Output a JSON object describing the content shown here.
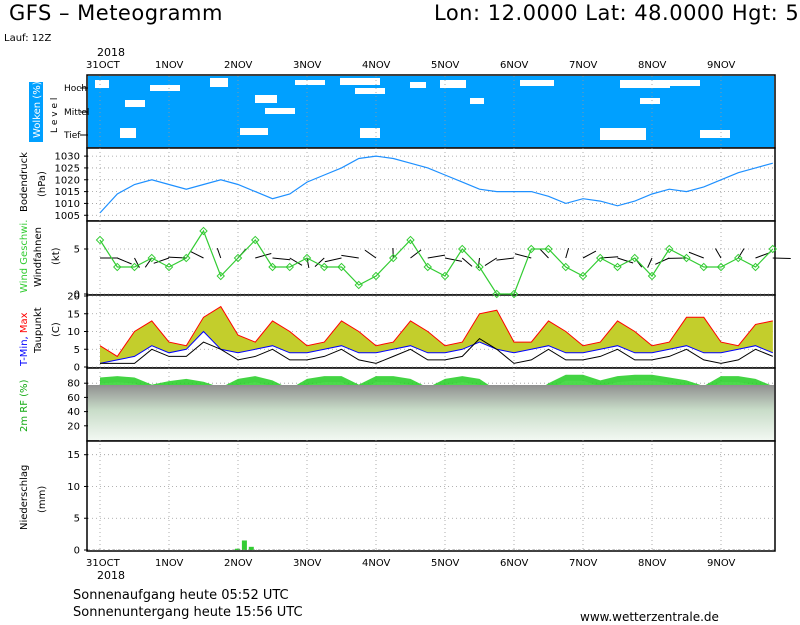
{
  "header": {
    "title": "GFS – Meteogramm",
    "location": "Lon: 12.0000 Lat: 48.0000 Hgt: 5",
    "run": "Lauf: 12Z"
  },
  "time_axis": {
    "year": "2018",
    "dates": [
      "31OCT",
      "1NOV",
      "2NOV",
      "3NOV",
      "4NOV",
      "5NOV",
      "6NOV",
      "7NOV",
      "8NOV",
      "9NOV"
    ]
  },
  "colors": {
    "cloud_blue": "#00a0ff",
    "pressure_line": "#1e90ff",
    "wind_speed": "#33cc33",
    "tmin_label": "#0000ff",
    "tmax_label": "#ff0000",
    "humidity_label": "#11aa11",
    "precip_bar": "#33cc33"
  },
  "panels": {
    "clouds": {
      "label": "Wolken (%)",
      "levels": [
        "Hoch",
        "Mittel",
        "Tief"
      ],
      "level_word": "L e v e l"
    },
    "pressure": {
      "label1": "Bodendruck",
      "label2": "(hPa)",
      "ticks": [
        "1030",
        "1025",
        "1020",
        "1015",
        "1010",
        "1005"
      ]
    },
    "wind": {
      "label1": "Wind Geschwi.",
      "label2": "Windfahnen",
      "label3": "(kt)",
      "ticks": [
        "5",
        "0"
      ]
    },
    "temp": {
      "label_tmin": "T-Min,",
      "label_tmax": "Max",
      "label2": "Taupunkt",
      "label3": "(C)",
      "ticks": [
        "20",
        "15",
        "10",
        "5",
        "0"
      ]
    },
    "humidity": {
      "label": "2m RF (%)",
      "ticks": [
        "80",
        "60",
        "40",
        "20"
      ]
    },
    "precip": {
      "label1": "Niederschlag",
      "label2": "(mm)",
      "ticks": [
        "15",
        "10",
        "5",
        "0"
      ]
    }
  },
  "footer": {
    "sunrise": "Sonnenaufgang heute 05:52 UTC",
    "sunset": "Sonnenuntergang heute 15:56 UTC",
    "url": "www.wetterzentrale.de"
  },
  "chart_data": [
    {
      "type": "line",
      "panel": "pressure",
      "x": [
        0,
        0.25,
        0.5,
        0.75,
        1,
        1.25,
        1.5,
        1.75,
        2,
        2.25,
        2.5,
        2.75,
        3,
        3.25,
        3.5,
        3.75,
        4,
        4.25,
        4.5,
        4.75,
        5,
        5.25,
        5.5,
        5.75,
        6,
        6.25,
        6.5,
        6.75,
        7,
        7.25,
        7.5,
        7.75,
        8,
        8.25,
        8.5,
        8.75,
        9,
        9.25,
        9.5,
        9.75
      ],
      "values": [
        1006,
        1014,
        1018,
        1020,
        1018,
        1016,
        1018,
        1020,
        1018,
        1015,
        1012,
        1014,
        1019,
        1022,
        1025,
        1029,
        1030,
        1029,
        1027,
        1025,
        1022,
        1019,
        1016,
        1015,
        1015,
        1015,
        1013,
        1010,
        1012,
        1011,
        1009,
        1011,
        1014,
        1016,
        1015,
        1017,
        1020,
        1023,
        1025,
        1027
      ],
      "ylim": [
        1003,
        1033
      ]
    },
    {
      "type": "line",
      "panel": "wind",
      "x": [
        0,
        0.25,
        0.5,
        0.75,
        1,
        1.25,
        1.5,
        1.75,
        2,
        2.25,
        2.5,
        2.75,
        3,
        3.25,
        3.5,
        3.75,
        4,
        4.25,
        4.5,
        4.75,
        5,
        5.25,
        5.5,
        5.75,
        6,
        6.25,
        6.5,
        6.75,
        7,
        7.25,
        7.5,
        7.75,
        8,
        8.25,
        8.5,
        8.75,
        9,
        9.25,
        9.5,
        9.75
      ],
      "values": [
        6,
        3,
        3,
        4,
        3,
        4,
        7,
        2,
        4,
        6,
        3,
        3,
        4,
        3,
        3,
        1,
        2,
        4,
        6,
        3,
        2,
        5,
        3,
        0,
        0,
        5,
        5,
        3,
        2,
        4,
        3,
        4,
        2,
        5,
        4,
        3,
        3,
        4,
        3,
        5
      ],
      "ylim": [
        0,
        8
      ]
    },
    {
      "type": "area",
      "panel": "temperature",
      "x": [
        0,
        0.25,
        0.5,
        0.75,
        1,
        1.25,
        1.5,
        1.75,
        2,
        2.25,
        2.5,
        2.75,
        3,
        3.25,
        3.5,
        3.75,
        4,
        4.25,
        4.5,
        4.75,
        5,
        5.25,
        5.5,
        5.75,
        6,
        6.25,
        6.5,
        6.75,
        7,
        7.25,
        7.5,
        7.75,
        8,
        8.25,
        8.5,
        8.75,
        9,
        9.25,
        9.5,
        9.75
      ],
      "series": [
        {
          "name": "T-Min",
          "values": [
            1,
            2,
            3,
            6,
            4,
            5,
            10,
            5,
            4,
            5,
            6,
            4,
            4,
            5,
            6,
            4,
            4,
            5,
            6,
            4,
            4,
            5,
            7,
            5,
            4,
            5,
            6,
            4,
            4,
            5,
            6,
            4,
            4,
            5,
            6,
            4,
            4,
            5,
            6,
            4
          ]
        },
        {
          "name": "Max",
          "values": [
            6,
            3,
            10,
            13,
            7,
            6,
            14,
            17,
            9,
            7,
            13,
            10,
            6,
            7,
            13,
            10,
            6,
            7,
            13,
            10,
            6,
            7,
            15,
            16,
            7,
            7,
            13,
            10,
            6,
            7,
            13,
            10,
            6,
            7,
            14,
            14,
            7,
            6,
            12,
            13
          ]
        },
        {
          "name": "Taupunkt",
          "values": [
            1,
            1,
            1,
            5,
            3,
            3,
            7,
            5,
            2,
            3,
            5,
            2,
            2,
            3,
            5,
            2,
            1,
            3,
            5,
            2,
            2,
            3,
            8,
            5,
            1,
            2,
            5,
            2,
            2,
            3,
            5,
            2,
            2,
            3,
            5,
            2,
            1,
            2,
            5,
            3
          ]
        }
      ],
      "ylim": [
        0,
        20
      ]
    },
    {
      "type": "area",
      "panel": "humidity",
      "x": [
        0,
        0.25,
        0.5,
        0.75,
        1,
        1.25,
        1.5,
        1.75,
        2,
        2.25,
        2.5,
        2.75,
        3,
        3.25,
        3.5,
        3.75,
        4,
        4.25,
        4.5,
        4.75,
        5,
        5.25,
        5.5,
        5.75,
        6,
        6.25,
        6.5,
        6.75,
        7,
        7.25,
        7.5,
        7.75,
        8,
        8.25,
        8.5,
        8.75,
        9,
        9.25,
        9.5,
        9.75
      ],
      "values": [
        88,
        90,
        88,
        78,
        83,
        86,
        82,
        74,
        86,
        90,
        84,
        72,
        86,
        90,
        90,
        78,
        90,
        90,
        86,
        74,
        86,
        90,
        86,
        70,
        74,
        64,
        80,
        92,
        92,
        84,
        90,
        92,
        92,
        88,
        84,
        76,
        90,
        90,
        86,
        76
      ],
      "ylim": [
        0,
        100
      ]
    },
    {
      "type": "bar",
      "panel": "precipitation",
      "x": [
        2.0,
        2.1,
        2.2
      ],
      "values": [
        0.2,
        1.5,
        0.5
      ],
      "ylim": [
        0,
        17
      ]
    }
  ]
}
